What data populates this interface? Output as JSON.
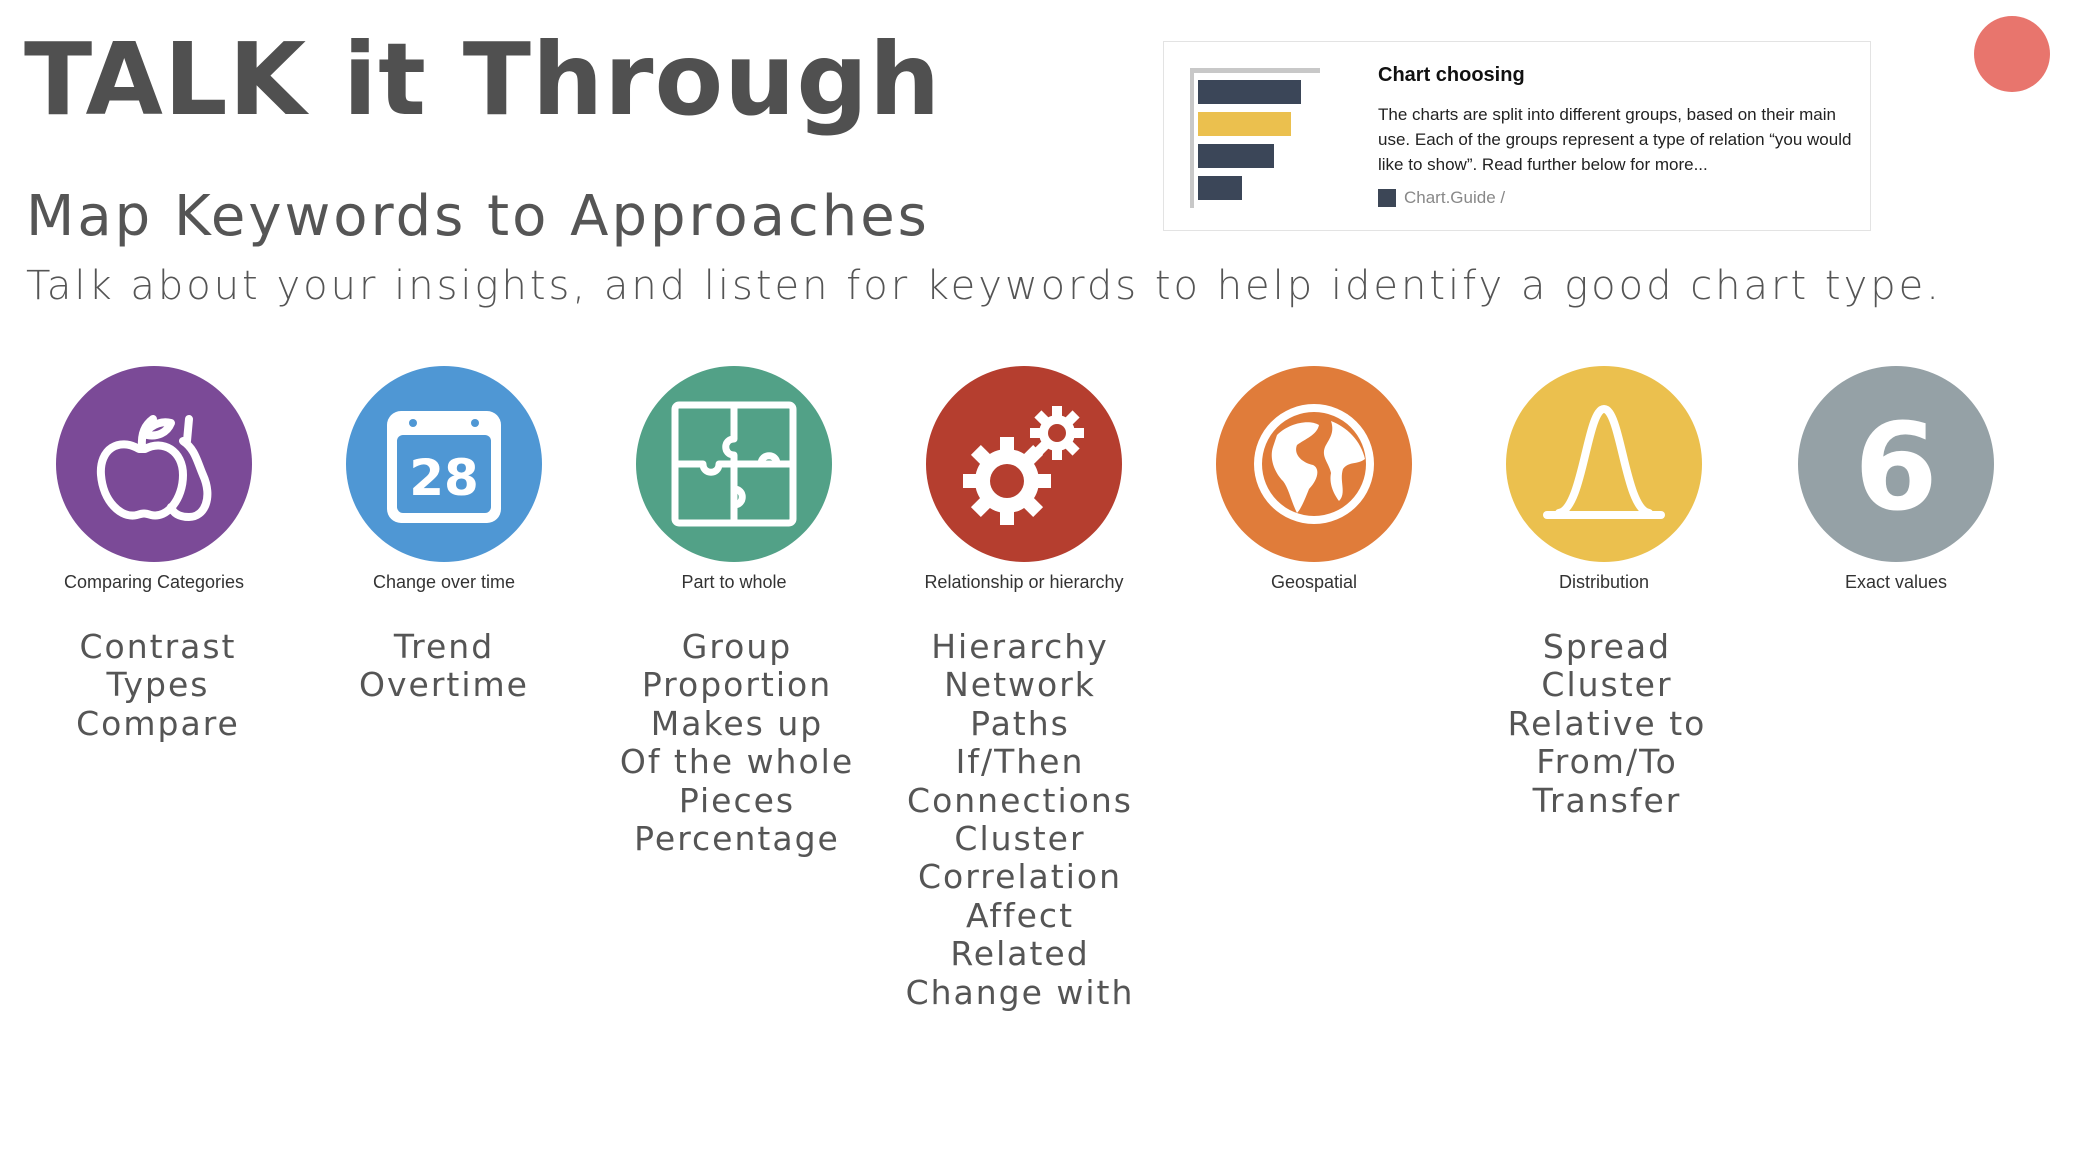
{
  "page": {
    "title": "TALK it Through",
    "subtitle": "Map Keywords to Approaches",
    "description": "Talk about your insights, and listen for keywords to help identify a good chart type."
  },
  "card": {
    "title": "Chart choosing",
    "text": "The charts are split into different groups, based on their main use. Each of the groups represent a type of relation “you would like to show”. Read further below for more...",
    "source": "Chart.Guide /",
    "thumbnail_bar_fractions": [
      0.82,
      0.74,
      0.6,
      0.35
    ]
  },
  "categories": [
    {
      "label": "Comparing Categories",
      "icon": "fruit-icon",
      "color": "#7b4a97",
      "keywords": [
        "Contrast",
        "Types",
        "Compare"
      ]
    },
    {
      "label": "Change over time",
      "icon": "calendar-icon",
      "color": "#4f97d4",
      "calendar_day": "28",
      "keywords": [
        "Trend",
        "Overtime"
      ]
    },
    {
      "label": "Part to whole",
      "icon": "puzzle-icon",
      "color": "#52a187",
      "keywords": [
        "Group",
        "Proportion",
        "Makes up",
        "Of the whole",
        "Pieces",
        "Percentage"
      ]
    },
    {
      "label": "Relationship or hierarchy",
      "icon": "gears-icon",
      "color": "#b53e2f",
      "keywords": [
        "Hierarchy",
        "Network",
        "Paths",
        "If/Then",
        "Connections",
        "Cluster",
        "Correlation",
        "Affect",
        "Related",
        "Change with"
      ]
    },
    {
      "label": "Geospatial",
      "icon": "globe-icon",
      "color": "#e07c3a",
      "keywords": []
    },
    {
      "label": "Distribution",
      "icon": "bell-curve-icon",
      "color": "#ebc04e",
      "keywords": [
        "Spread",
        "Cluster",
        "Relative to",
        "From/To",
        "Transfer"
      ]
    },
    {
      "label": "Exact values",
      "icon": "number-six-icon",
      "color": "#95a1a6",
      "number": "6",
      "keywords": []
    }
  ]
}
